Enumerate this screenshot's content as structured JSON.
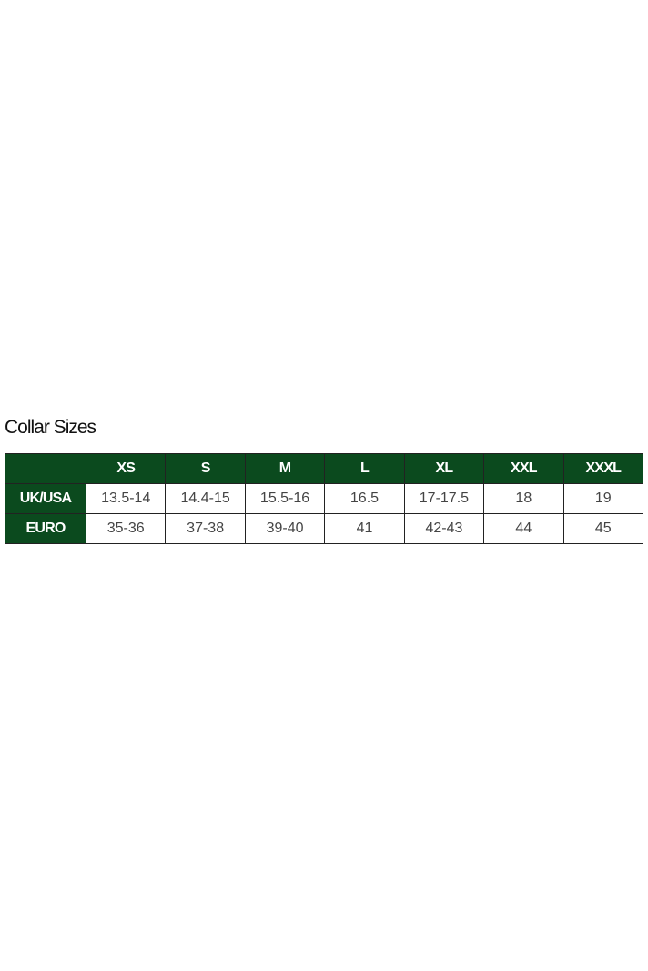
{
  "title": "Collar Sizes",
  "header_color": "#0b4a1e",
  "columns": [
    "",
    "XS",
    "S",
    "M",
    "L",
    "XL",
    "XXL",
    "XXXL"
  ],
  "rows": [
    {
      "label": "UK/USA",
      "values": [
        "13.5-14",
        "14.4-15",
        "15.5-16",
        "16.5",
        "17-17.5",
        "18",
        "19"
      ]
    },
    {
      "label": "EURO",
      "values": [
        "35-36",
        "37-38",
        "39-40",
        "41",
        "42-43",
        "44",
        "45"
      ]
    }
  ]
}
